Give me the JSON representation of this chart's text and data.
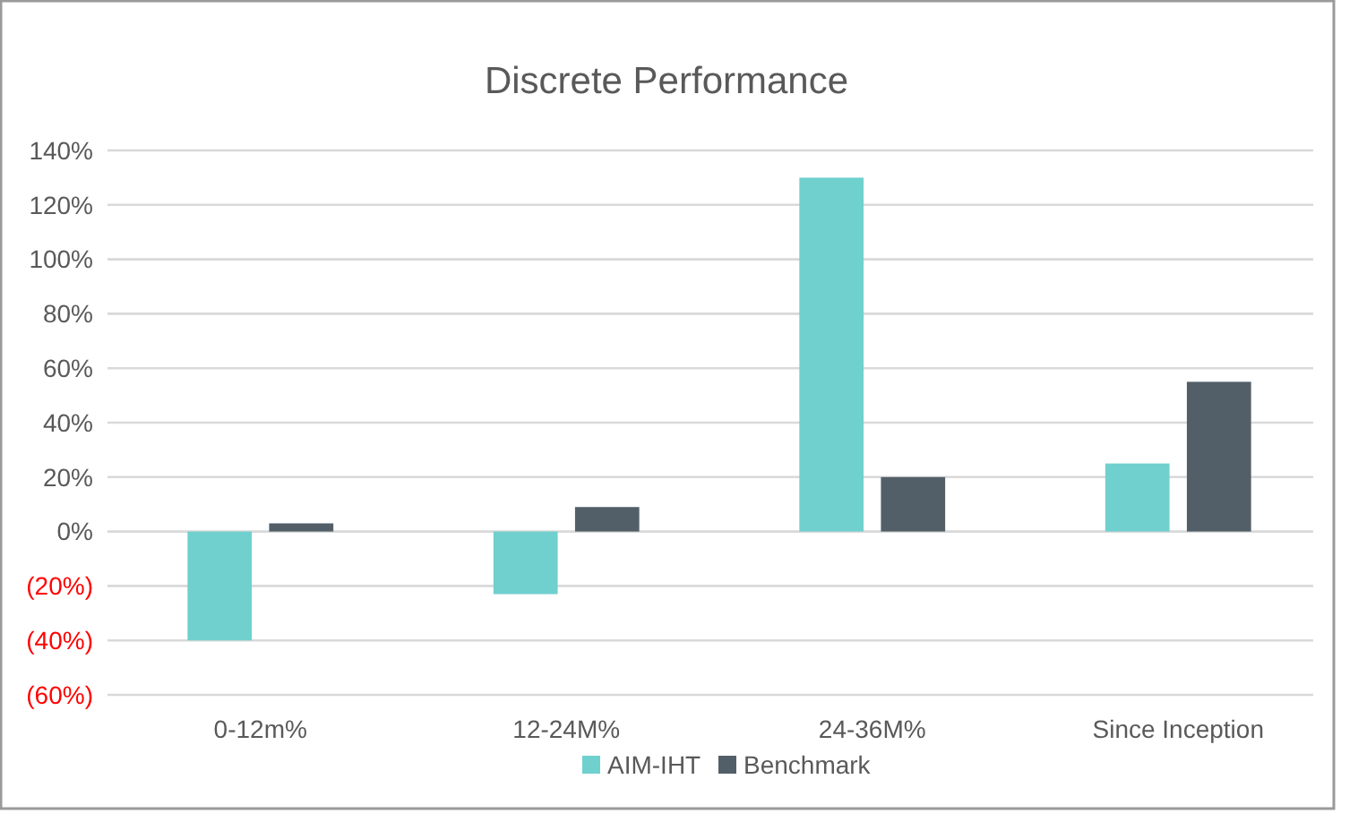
{
  "chart_data": {
    "type": "bar",
    "title": "Discrete Performance",
    "categories": [
      "0-12m%",
      "12-24M%",
      "24-36M%",
      "Since Inception"
    ],
    "series": [
      {
        "name": "AIM-IHT",
        "color": "#6fd0ce",
        "values": [
          -40,
          -23,
          130,
          25
        ]
      },
      {
        "name": "Benchmark",
        "color": "#535f68",
        "values": [
          3,
          9,
          20,
          55
        ]
      }
    ],
    "ylim": [
      -60,
      140
    ],
    "yticks": [
      {
        "value": -60,
        "label": "(60%)"
      },
      {
        "value": -40,
        "label": "(40%)"
      },
      {
        "value": -20,
        "label": "(20%)"
      },
      {
        "value": 0,
        "label": "0%"
      },
      {
        "value": 20,
        "label": "20%"
      },
      {
        "value": 40,
        "label": "40%"
      },
      {
        "value": 60,
        "label": "60%"
      },
      {
        "value": 80,
        "label": "80%"
      },
      {
        "value": 100,
        "label": "100%"
      },
      {
        "value": 120,
        "label": "120%"
      },
      {
        "value": 140,
        "label": "140%"
      }
    ],
    "grid": "y",
    "legend": "bottom"
  }
}
